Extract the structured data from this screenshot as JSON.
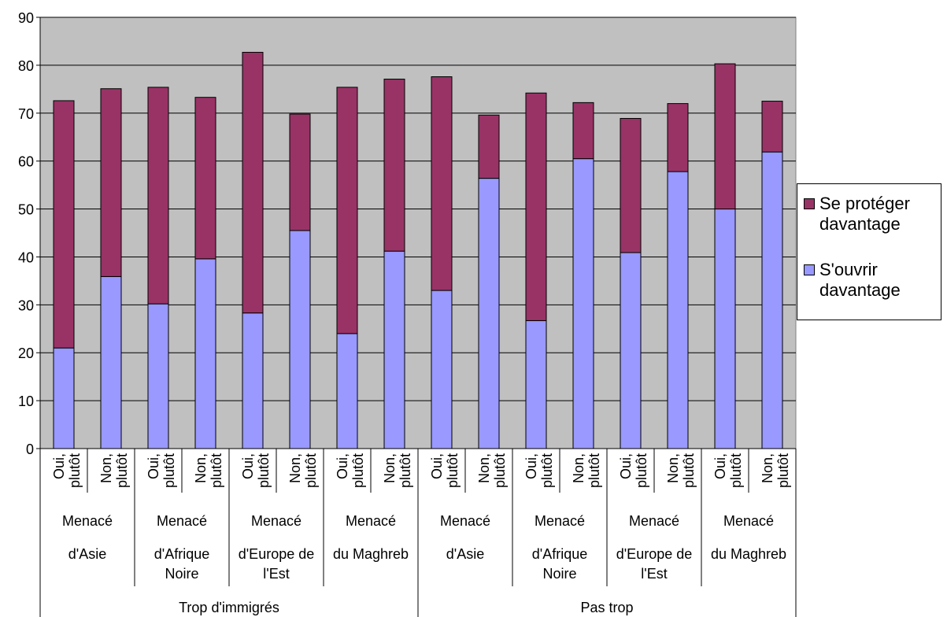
{
  "chart_data": {
    "type": "bar",
    "stacked": true,
    "title": "",
    "xlabel": "",
    "ylabel": "",
    "ylim": [
      0,
      90
    ],
    "yticks": [
      0,
      10,
      20,
      30,
      40,
      50,
      60,
      70,
      80,
      90
    ],
    "grid": true,
    "plot_background": "#c0c0c0",
    "legend_position": "right",
    "groups": [
      {
        "label": "Trop d'immigrés",
        "subgroups": [
          {
            "label": [
              "Menacé",
              "d'Asie"
            ]
          },
          {
            "label": [
              "Menacé",
              "d'Afrique",
              "Noire"
            ]
          },
          {
            "label": [
              "Menacé",
              "d'Europe de",
              "l'Est"
            ]
          },
          {
            "label": [
              "Menacé",
              "du Maghreb"
            ]
          }
        ]
      },
      {
        "label": "Pas trop",
        "subgroups": [
          {
            "label": [
              "Menacé",
              "d'Asie"
            ]
          },
          {
            "label": [
              "Menacé",
              "d'Afrique",
              "Noire"
            ]
          },
          {
            "label": [
              "Menacé",
              "d'Europe de",
              "l'Est"
            ]
          },
          {
            "label": [
              "Menacé",
              "du Maghreb"
            ]
          }
        ]
      }
    ],
    "categories": [
      [
        "Oui,",
        "plutôt"
      ],
      [
        "Non,",
        "plutôt"
      ],
      [
        "Oui,",
        "plutôt"
      ],
      [
        "Non,",
        "plutôt"
      ],
      [
        "Oui,",
        "plutôt"
      ],
      [
        "Non,",
        "plutôt"
      ],
      [
        "Oui,",
        "plutôt"
      ],
      [
        "Non,",
        "plutôt"
      ],
      [
        "Oui,",
        "plutôt"
      ],
      [
        "Non,",
        "plutôt"
      ],
      [
        "Oui,",
        "plutôt"
      ],
      [
        "Non,",
        "plutôt"
      ],
      [
        "Oui,",
        "plutôt"
      ],
      [
        "Non,",
        "plutôt"
      ],
      [
        "Oui,",
        "plutôt"
      ],
      [
        "Non,",
        "plutôt"
      ]
    ],
    "series": [
      {
        "name": "S'ouvrir davantage",
        "color": "#9999ff",
        "values": [
          21.0,
          35.9,
          30.2,
          39.6,
          28.3,
          45.5,
          24.0,
          41.2,
          33.0,
          56.4,
          26.7,
          60.5,
          40.9,
          57.8,
          50.0,
          61.9
        ]
      },
      {
        "name": "Se protéger davantage",
        "color": "#993366",
        "values": [
          51.6,
          39.2,
          45.2,
          33.7,
          54.4,
          24.3,
          51.4,
          35.9,
          44.6,
          13.2,
          47.5,
          11.7,
          28.0,
          14.2,
          30.3,
          10.6
        ]
      }
    ]
  },
  "legend": {
    "items": [
      {
        "label": "Se protéger davantage",
        "color": "#993366"
      },
      {
        "label": "S'ouvrir davantage",
        "color": "#9999ff"
      }
    ]
  }
}
